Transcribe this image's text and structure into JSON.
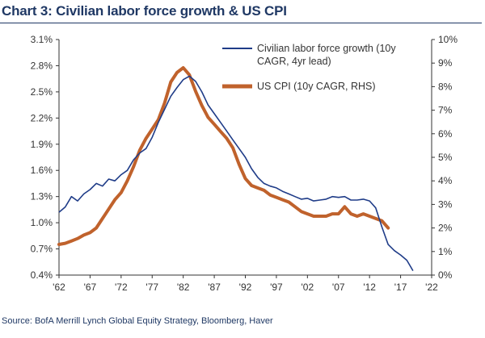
{
  "title": "Chart 3: Civilian labor force growth & US CPI",
  "source": "Source: BofA Merrill Lynch Global Equity Strategy, Bloomberg, Haver",
  "colors": {
    "labor": "#1f3c88",
    "cpi": "#c0622c",
    "axis": "#333333",
    "title": "#1f3864"
  },
  "chart_data": {
    "type": "line",
    "title": "Chart 3: Civilian labor force growth & US CPI",
    "grid": false,
    "legend_position": "top-right",
    "x_ticks": [
      "'62",
      "'67",
      "'72",
      "'77",
      "'82",
      "'87",
      "'92",
      "'97",
      "'02",
      "'07",
      "'12",
      "'17",
      "'22"
    ],
    "xlim": [
      1962,
      2022
    ],
    "y_left": {
      "ylim": [
        0.4,
        3.1
      ],
      "ticks": [
        "0.4%",
        "0.7%",
        "1.0%",
        "1.3%",
        "1.6%",
        "1.9%",
        "2.2%",
        "2.5%",
        "2.8%",
        "3.1%"
      ]
    },
    "y_right": {
      "ylim": [
        0,
        10
      ],
      "ticks": [
        "0%",
        "1%",
        "2%",
        "3%",
        "4%",
        "5%",
        "6%",
        "7%",
        "8%",
        "9%",
        "10%"
      ]
    },
    "series": [
      {
        "name": "Civilian labor force growth (10y CAGR, 4yr lead)",
        "axis": "left",
        "x": [
          1962,
          1963,
          1964,
          1965,
          1966,
          1967,
          1968,
          1969,
          1970,
          1971,
          1972,
          1973,
          1974,
          1975,
          1976,
          1977,
          1978,
          1979,
          1980,
          1981,
          1982,
          1983,
          1984,
          1985,
          1986,
          1987,
          1988,
          1989,
          1990,
          1991,
          1992,
          1993,
          1994,
          1995,
          1996,
          1997,
          1998,
          1999,
          2000,
          2001,
          2002,
          2003,
          2004,
          2005,
          2006,
          2007,
          2008,
          2009,
          2010,
          2011,
          2012,
          2013,
          2014,
          2015,
          2016,
          2017,
          2018,
          2019
        ],
        "values": [
          1.12,
          1.18,
          1.3,
          1.25,
          1.33,
          1.38,
          1.45,
          1.42,
          1.5,
          1.48,
          1.55,
          1.6,
          1.72,
          1.8,
          1.85,
          1.98,
          2.15,
          2.3,
          2.45,
          2.55,
          2.64,
          2.68,
          2.62,
          2.5,
          2.35,
          2.25,
          2.15,
          2.05,
          1.95,
          1.85,
          1.75,
          1.62,
          1.52,
          1.45,
          1.42,
          1.4,
          1.36,
          1.33,
          1.3,
          1.27,
          1.28,
          1.25,
          1.26,
          1.27,
          1.3,
          1.29,
          1.3,
          1.26,
          1.26,
          1.27,
          1.25,
          1.17,
          0.95,
          0.75,
          0.68,
          0.63,
          0.57,
          0.45
        ]
      },
      {
        "name": "US CPI (10y CAGR, RHS)",
        "axis": "right",
        "x": [
          1962,
          1963,
          1964,
          1965,
          1966,
          1967,
          1968,
          1969,
          1970,
          1971,
          1972,
          1973,
          1974,
          1975,
          1976,
          1977,
          1978,
          1979,
          1980,
          1981,
          1982,
          1983,
          1984,
          1985,
          1986,
          1987,
          1988,
          1989,
          1990,
          1991,
          1992,
          1993,
          1994,
          1995,
          1996,
          1997,
          1998,
          1999,
          2000,
          2001,
          2002,
          2003,
          2004,
          2005,
          2006,
          2007,
          2008,
          2009,
          2010,
          2011,
          2012,
          2013,
          2014,
          2015
        ],
        "values": [
          1.3,
          1.35,
          1.45,
          1.55,
          1.7,
          1.8,
          2.0,
          2.4,
          2.8,
          3.2,
          3.5,
          4.0,
          4.6,
          5.3,
          5.8,
          6.2,
          6.6,
          7.3,
          8.2,
          8.6,
          8.8,
          8.5,
          7.8,
          7.2,
          6.7,
          6.4,
          6.1,
          5.8,
          5.4,
          4.7,
          4.1,
          3.8,
          3.7,
          3.6,
          3.4,
          3.3,
          3.2,
          3.1,
          2.9,
          2.7,
          2.6,
          2.5,
          2.5,
          2.5,
          2.6,
          2.6,
          2.9,
          2.6,
          2.5,
          2.6,
          2.5,
          2.4,
          2.3,
          2.0
        ]
      }
    ]
  }
}
